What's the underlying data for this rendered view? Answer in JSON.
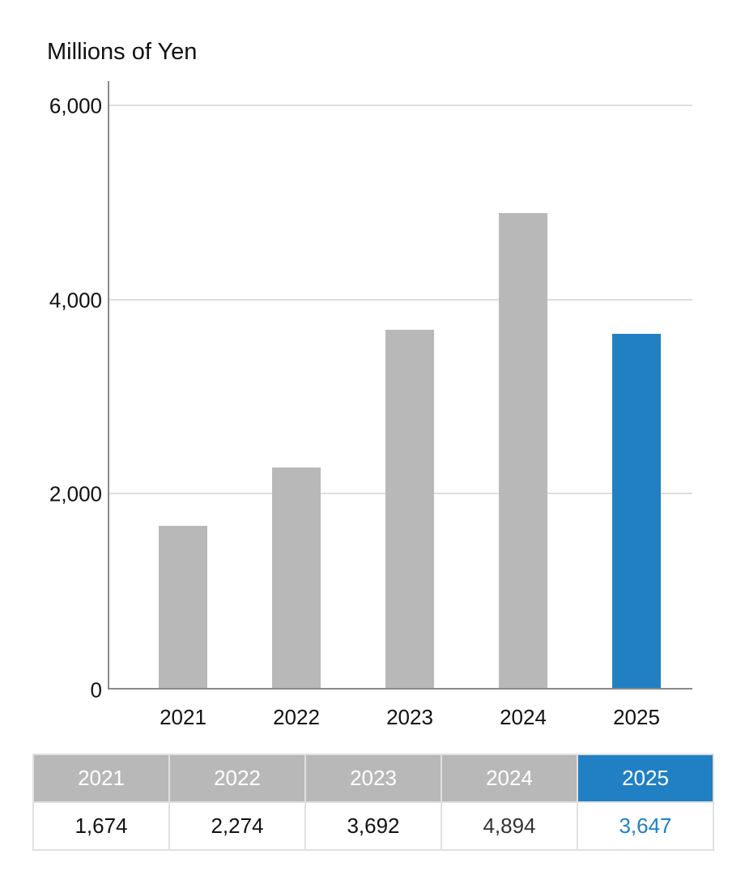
{
  "chart_data": {
    "type": "bar",
    "title": "",
    "unit_label": "Millions of Yen",
    "xlabel": "",
    "ylabel": "Millions of Yen",
    "categories": [
      "2021",
      "2022",
      "2023",
      "2024",
      "2025"
    ],
    "values": [
      1674,
      2274,
      3692,
      4894,
      3647
    ],
    "ylim": [
      0,
      6000
    ],
    "yticks": [
      0,
      2000,
      4000,
      6000
    ],
    "ytick_labels": [
      "0",
      "2,000",
      "4,000",
      "6,000"
    ],
    "grid": true,
    "highlight_index": 4,
    "colors": {
      "default_bar": "#b8b8b8",
      "highlight_bar": "#2180c4",
      "gridline": "#dedede",
      "axis": "#8a8a8a"
    }
  },
  "header": {
    "unit_label": "Millions of Yen"
  },
  "y_axis": {
    "ticks": [
      "6,000",
      "4,000",
      "2,000",
      "0"
    ]
  },
  "x_axis": {
    "ticks": [
      "2021",
      "2022",
      "2023",
      "2024",
      "2025"
    ]
  },
  "table": {
    "headers": [
      "2021",
      "2022",
      "2023",
      "2024",
      "2025"
    ],
    "values": [
      "1,674",
      "2,274",
      "3,692",
      "4,894",
      "3,647"
    ],
    "value_colors": [
      "#111111",
      "#111111",
      "#111111",
      "#333333",
      "#2180c4"
    ]
  }
}
